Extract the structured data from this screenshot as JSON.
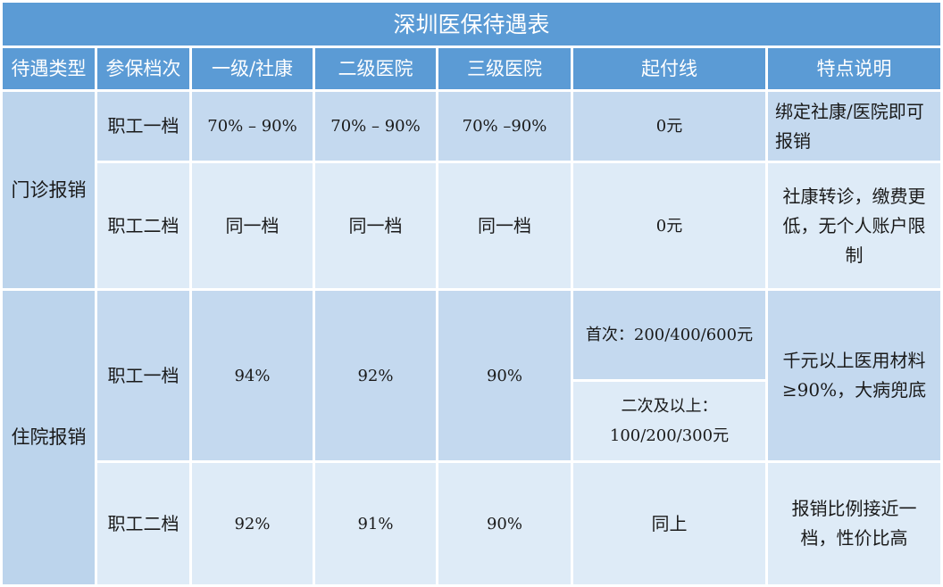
{
  "title": "深圳医保待遇表",
  "headers": [
    "待遇类型",
    "参保档次",
    "一级/社康",
    "二级医院",
    "三级医院",
    "起付线",
    "特点说明"
  ],
  "outpatient": {
    "type": "门诊报销",
    "row1": {
      "tier": "职工一档",
      "level1": "70% – 90%",
      "level2": "70% – 90%",
      "level3": "70% –90%",
      "deductible": "0元",
      "note": "绑定社康/医院即可报销"
    },
    "row2": {
      "tier": "职工二档",
      "level1": "同一档",
      "level2": "同一档",
      "level3": "同一档",
      "deductible": "0元",
      "note": "社康转诊，缴费更低，无个人账户限制"
    }
  },
  "inpatient": {
    "type": "住院报销",
    "row1": {
      "tier": "职工一档",
      "level1": "94%",
      "level2": "92%",
      "level3": "90%",
      "deductible_first": "首次：200/400/600元",
      "deductible_second": "二次及以上：100/200/300元",
      "note": "千元以上医用材料≥90%，大病兜底"
    },
    "row2": {
      "tier": "职工二档",
      "level1": "92%",
      "level2": "91%",
      "level3": "90%",
      "deductible": "同上",
      "note": "报销比例接近一档，性价比高"
    }
  }
}
